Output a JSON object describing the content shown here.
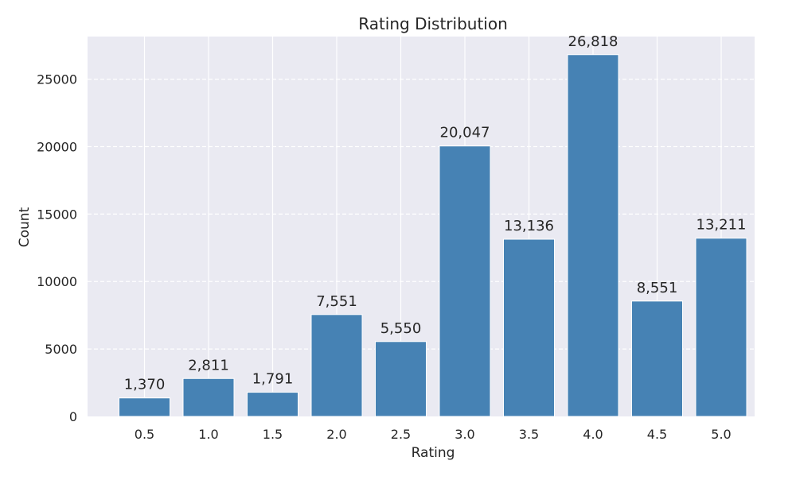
{
  "chart_data": {
    "type": "bar",
    "title": "Rating Distribution",
    "xlabel": "Rating",
    "ylabel": "Count",
    "categories": [
      "0.5",
      "1.0",
      "1.5",
      "2.0",
      "2.5",
      "3.0",
      "3.5",
      "4.0",
      "4.5",
      "5.0"
    ],
    "values": [
      1370,
      2811,
      1791,
      7551,
      5550,
      20047,
      13136,
      26818,
      8551,
      13211
    ],
    "value_labels": [
      "1,370",
      "2,811",
      "1,791",
      "7,551",
      "5,550",
      "20,047",
      "13,136",
      "26,818",
      "8,551",
      "13,211"
    ],
    "yticks": [
      0,
      5000,
      10000,
      15000,
      20000,
      25000
    ],
    "ylim": [
      0,
      28158.9
    ],
    "grid": true,
    "bar_color": "#4682b4",
    "background_color": "#eaeaf2",
    "grid_color": "#ffffff"
  }
}
